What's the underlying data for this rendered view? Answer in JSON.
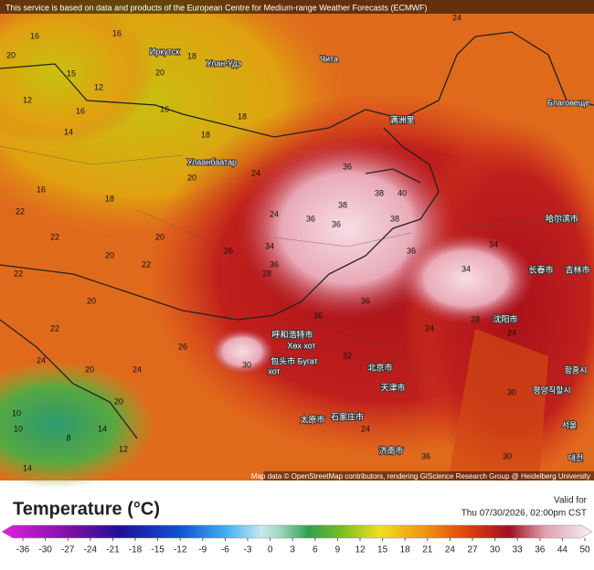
{
  "header": {
    "attribution": "This service is based on data and products of the European Centre for Medium-range Weather Forecasts (ECMWF)"
  },
  "map": {
    "places": [
      "Иркутск",
      "Улан-Удэ",
      "Чита",
      "Улаанбаатар",
      "Благовеще",
      "满洲里",
      "哈尔滨市",
      "长春市",
      "吉林市",
      "沈阳市",
      "呼和浩特市",
      "Хөх хот",
      "包头市 Бугат",
      "хот",
      "北京市",
      "天津市",
      "石家庄市",
      "太原市",
      "济南市",
      "함흥시",
      "평양직할시",
      "서울",
      "대전"
    ],
    "temperatures": [
      16,
      16,
      12,
      20,
      15,
      16,
      12,
      14,
      18,
      20,
      18,
      16,
      18,
      24,
      20,
      16,
      18,
      20,
      22,
      28,
      20,
      22,
      24,
      22,
      26,
      20,
      22,
      24,
      22,
      36,
      38,
      40,
      38,
      36,
      38,
      36,
      36,
      34,
      36,
      36,
      36,
      30,
      32,
      24,
      26,
      20,
      24,
      24,
      20,
      10,
      10,
      8,
      14,
      12,
      14,
      24,
      34,
      34,
      30,
      30,
      36,
      28,
      24
    ],
    "credit": "Map data © OpenStreetMap contributors, rendering GIScience Research Group @ Heidelberg University"
  },
  "legend": {
    "title": "Temperature (°C)",
    "valid_label": "Valid for",
    "valid_time": "Thu 07/30/2026, 02:00pm CST",
    "ticks": [
      -36,
      -30,
      -27,
      -24,
      -21,
      -18,
      -15,
      -12,
      -9,
      -6,
      -3,
      0,
      3,
      6,
      9,
      12,
      15,
      18,
      21,
      24,
      27,
      30,
      33,
      36,
      44,
      50
    ]
  }
}
